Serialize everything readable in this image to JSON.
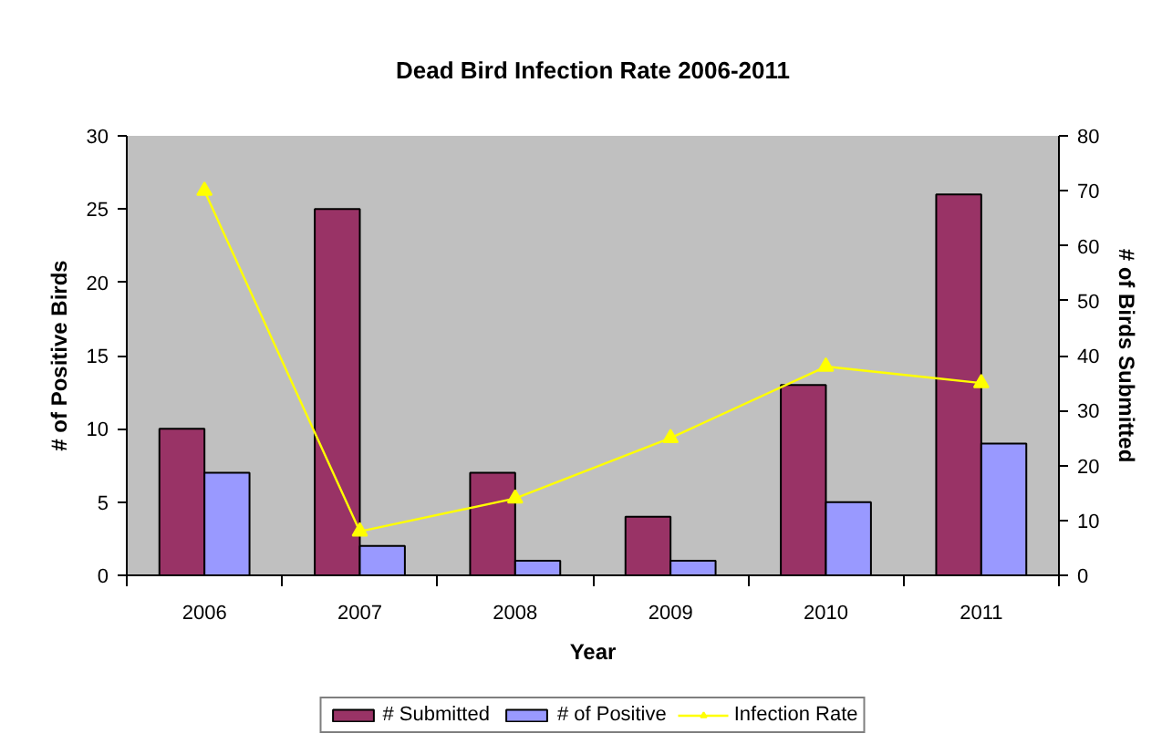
{
  "chart_data": {
    "type": "bar",
    "title": "Dead Bird Infection Rate 2006-2011",
    "xlabel": "Year",
    "ylabel": "# of Positive Birds",
    "y2label": "# of Birds Submitted",
    "categories": [
      "2006",
      "2007",
      "2008",
      "2009",
      "2010",
      "2011"
    ],
    "series": [
      {
        "name": "# Submitted",
        "color": "#993366",
        "values": [
          10,
          25,
          7,
          4,
          13,
          26
        ]
      },
      {
        "name": "# of Positive",
        "color": "#9999ff",
        "values": [
          7,
          2,
          1,
          1,
          5,
          9
        ]
      },
      {
        "name": "Infection Rate",
        "type": "line",
        "axis": "y2",
        "color": "#ffff00",
        "marker": "triangle",
        "values": [
          70,
          8,
          14,
          25,
          38,
          35
        ]
      }
    ],
    "ylim": [
      0,
      30
    ],
    "yticks": [
      0,
      5,
      10,
      15,
      20,
      25,
      30
    ],
    "y2lim": [
      0,
      80
    ],
    "y2ticks": [
      0,
      10,
      20,
      30,
      40,
      50,
      60,
      70,
      80
    ],
    "legend": "bottom"
  }
}
